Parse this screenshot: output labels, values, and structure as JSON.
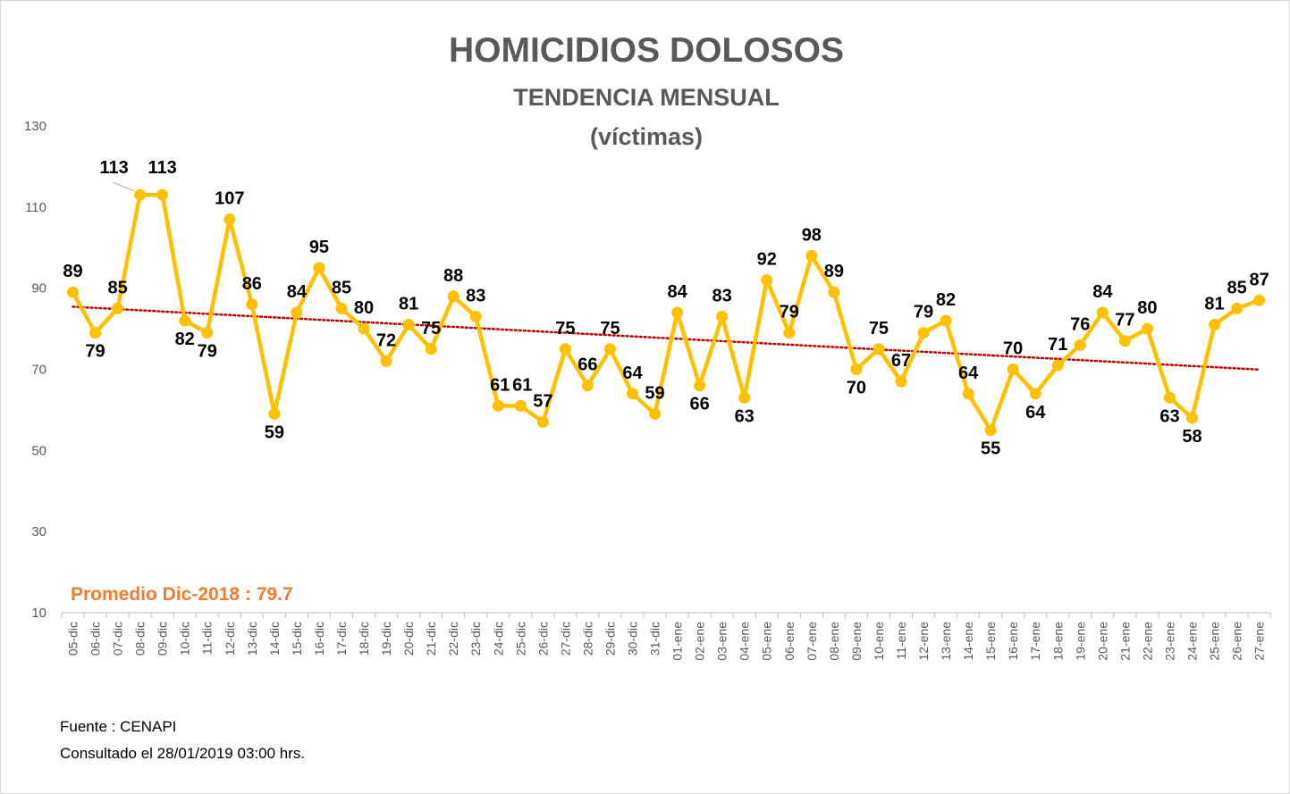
{
  "chart_data": {
    "type": "line",
    "title": "HOMICIDIOS DOLOSOS",
    "subtitle_1": "TENDENCIA MENSUAL",
    "subtitle_2": "(víctimas)",
    "categories": [
      "05-dic",
      "06-dic",
      "07-dic",
      "08-dic",
      "09-dic",
      "10-dic",
      "11-dic",
      "12-dic",
      "13-dic",
      "14-dic",
      "15-dic",
      "16-dic",
      "17-dic",
      "18-dic",
      "19-dic",
      "20-dic",
      "21-dic",
      "22-dic",
      "23-dic",
      "24-dic",
      "25-dic",
      "26-dic",
      "27-dic",
      "28-dic",
      "29-dic",
      "30-dic",
      "31-dic",
      "01-ene",
      "02-ene",
      "03-ene",
      "04-ene",
      "05-ene",
      "06-ene",
      "07-ene",
      "08-ene",
      "09-ene",
      "10-ene",
      "11-ene",
      "12-ene",
      "13-ene",
      "14-ene",
      "15-ene",
      "16-ene",
      "17-ene",
      "18-ene",
      "19-ene",
      "20-ene",
      "21-ene",
      "22-ene",
      "23-ene",
      "24-ene",
      "25-ene",
      "26-ene",
      "27-ene"
    ],
    "values": [
      89,
      79,
      85,
      113,
      113,
      82,
      79,
      107,
      86,
      59,
      84,
      95,
      85,
      80,
      72,
      81,
      75,
      88,
      83,
      61,
      61,
      57,
      75,
      66,
      75,
      64,
      59,
      84,
      66,
      83,
      63,
      92,
      79,
      98,
      89,
      70,
      75,
      67,
      79,
      82,
      64,
      55,
      70,
      64,
      71,
      76,
      84,
      77,
      80,
      63,
      58,
      81,
      85,
      87
    ],
    "yticks": [
      10,
      30,
      50,
      70,
      90,
      110,
      130
    ],
    "ylim": [
      10,
      130
    ],
    "trendline": {
      "type": "linear",
      "style": "dotted",
      "color": "#c00000"
    },
    "line_color": "#ffc000",
    "average_label": "Promedio Dic-2018 : 79.7",
    "average_color": "#ed7d31",
    "legend": "none",
    "grid": false
  },
  "footer": {
    "source": "Fuente : CENAPI",
    "consulted": "Consultado el 28/01/2019  03:00 hrs."
  }
}
